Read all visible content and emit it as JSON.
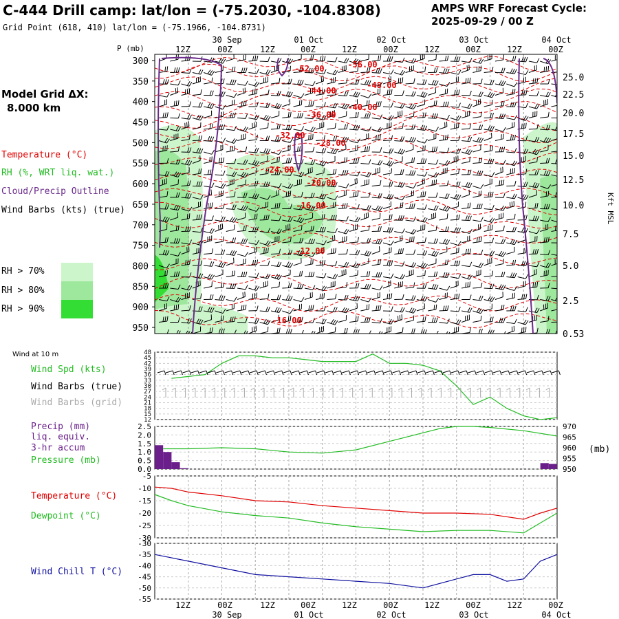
{
  "header": {
    "title": "C-444 Drill camp:  lat/lon = (-75.2030, -104.8308)",
    "grid_point": "Grid Point (618, 410) lat/lon = (-75.1966, -104.8731)",
    "cycle_label": "AMPS WRF Forecast Cycle:",
    "cycle_value": "2025-09-29 / 00  Z"
  },
  "left_panel": {
    "model_grid_label": "Model Grid ΔX:",
    "model_grid_value": "8.000 km",
    "legend_temperature": "Temperature (°C)",
    "legend_rh": "RH (%, WRT liq. wat.)",
    "legend_cloud": "Cloud/Precip Outline",
    "legend_wind": "Wind Barbs (kts) (true)",
    "rh70": "RH > 70%",
    "rh80": "RH > 80%",
    "rh90": "RH > 90%"
  },
  "colors": {
    "temperature": "#e00000",
    "rh70": "#ccf5cc",
    "rh80": "#9de89d",
    "rh90": "#33dd33",
    "cloud": "#6a2a8a",
    "wind": "#000000",
    "windgrid": "#aaaaaa",
    "precip": "#6a1f8a",
    "pressure": "#22bb22",
    "dewpoint": "#22bb22",
    "windchill": "#1010a0"
  },
  "time_axis": {
    "top_dates": [
      "30 Sep",
      "01 Oct",
      "02 Oct",
      "03 Oct",
      "04 Oct"
    ],
    "hour_ticks": [
      "12Z",
      "00Z",
      "12Z",
      "00Z",
      "12Z",
      "00Z",
      "12Z",
      "00Z",
      "12Z",
      "00Z"
    ],
    "bottom_dates": [
      "30 Sep",
      "01 Oct",
      "02 Oct",
      "03 Oct",
      "04 Oct"
    ]
  },
  "chart_data": [
    {
      "type": "heatmap",
      "name": "cross-section",
      "ylabel": "P (mb)",
      "yticks": [
        300,
        350,
        400,
        450,
        500,
        550,
        600,
        650,
        700,
        750,
        800,
        850,
        900,
        950
      ],
      "right_ylabel": "Kft MSL",
      "right_ticks": [
        "25.0",
        "22.5",
        "20.0",
        "17.5",
        "15.0",
        "12.5",
        "10.0",
        "7.5",
        "5.0",
        "2.5",
        "0.53"
      ],
      "isotherm_labels": [
        "-52.00",
        "-56.00",
        "-48.00",
        "-44.00",
        "-40.00",
        "-36.00",
        "-32.00",
        "-28.00",
        "-24.00",
        "-20.00",
        "-16.00",
        "-12.00",
        "-16.00"
      ]
    },
    {
      "type": "line",
      "name": "wind10m",
      "panel_title": "Wind at 10 m",
      "legend_speed": "Wind Spd (kts)",
      "legend_barbs_true": "Wind Barbs (true)",
      "legend_barbs_grid": "Wind Barbs (grid)",
      "yticks": [
        48,
        45,
        42,
        39,
        36,
        33,
        30,
        27,
        24,
        21,
        18,
        15,
        12
      ],
      "ylim": [
        12,
        48
      ],
      "x_hours": [
        6,
        12,
        18,
        24,
        30,
        36,
        42,
        48,
        54,
        60,
        66,
        72,
        78,
        84,
        90,
        96,
        102,
        108,
        114,
        120,
        126,
        132,
        138,
        144
      ],
      "speed": [
        34,
        35,
        36,
        42,
        46,
        46,
        45,
        45,
        44,
        43,
        43,
        43,
        47,
        42,
        42,
        41,
        38,
        30,
        20,
        24,
        18,
        14,
        12,
        13
      ]
    },
    {
      "type": "bar",
      "name": "precip-pressure",
      "legend_precip": "Precip (mm)",
      "legend_liq": "liq. equiv.",
      "legend_accum": "3-hr accum",
      "legend_pressure": "Pressure (mb)",
      "left_ticks": [
        "2.5",
        "2.0",
        "1.5",
        "1.0",
        "0.5",
        "0.0"
      ],
      "right_ticks": [
        "970",
        "965",
        "960",
        "955",
        "950"
      ],
      "right_unit": "(mb)",
      "precip_x_hours": [
        3,
        6,
        9,
        12,
        141,
        144
      ],
      "precip_mm": [
        1.4,
        1.0,
        0.4,
        0.05,
        0.35,
        0.3
      ],
      "pressure_x_hours": [
        3,
        12,
        24,
        36,
        48,
        60,
        72,
        84,
        96,
        102,
        108,
        114,
        120,
        132,
        144
      ],
      "pressure_mb": [
        959.5,
        959.5,
        960,
        959.5,
        958,
        957.5,
        959,
        963,
        967,
        969,
        970,
        970,
        969.5,
        968,
        965.5
      ]
    },
    {
      "type": "line",
      "name": "temp-dew",
      "legend_temperature": "Temperature (°C)",
      "legend_dewpoint": "Dewpoint (°C)",
      "yticks": [
        -5,
        -10,
        -15,
        -20,
        -25,
        -30
      ],
      "ylim": [
        -30,
        -5
      ],
      "x_hours": [
        0,
        6,
        12,
        24,
        36,
        48,
        60,
        72,
        84,
        96,
        108,
        120,
        132,
        138,
        144
      ],
      "temperature": [
        -9.5,
        -10,
        -11.5,
        -13,
        -15,
        -15.5,
        -17,
        -18,
        -19,
        -20,
        -20,
        -20.5,
        -22.5,
        -20,
        -18
      ],
      "dewpoint": [
        -12.5,
        -15,
        -17,
        -19.5,
        -21,
        -22,
        -24,
        -25.5,
        -26.5,
        -27.5,
        -27,
        -27,
        -28,
        -24,
        -20
      ]
    },
    {
      "type": "line",
      "name": "windchill",
      "legend": "Wind Chill T (°C)",
      "yticks": [
        -30,
        -35,
        -40,
        -45,
        -50,
        -55
      ],
      "ylim": [
        -55,
        -30
      ],
      "x_hours": [
        0,
        12,
        24,
        36,
        48,
        60,
        72,
        84,
        96,
        108,
        114,
        120,
        126,
        132,
        138,
        144
      ],
      "windchill": [
        -35,
        -38,
        -41,
        -44,
        -45,
        -46,
        -47,
        -48,
        -50,
        -46,
        -44,
        -44,
        -47,
        -46,
        -38,
        -35
      ]
    }
  ]
}
